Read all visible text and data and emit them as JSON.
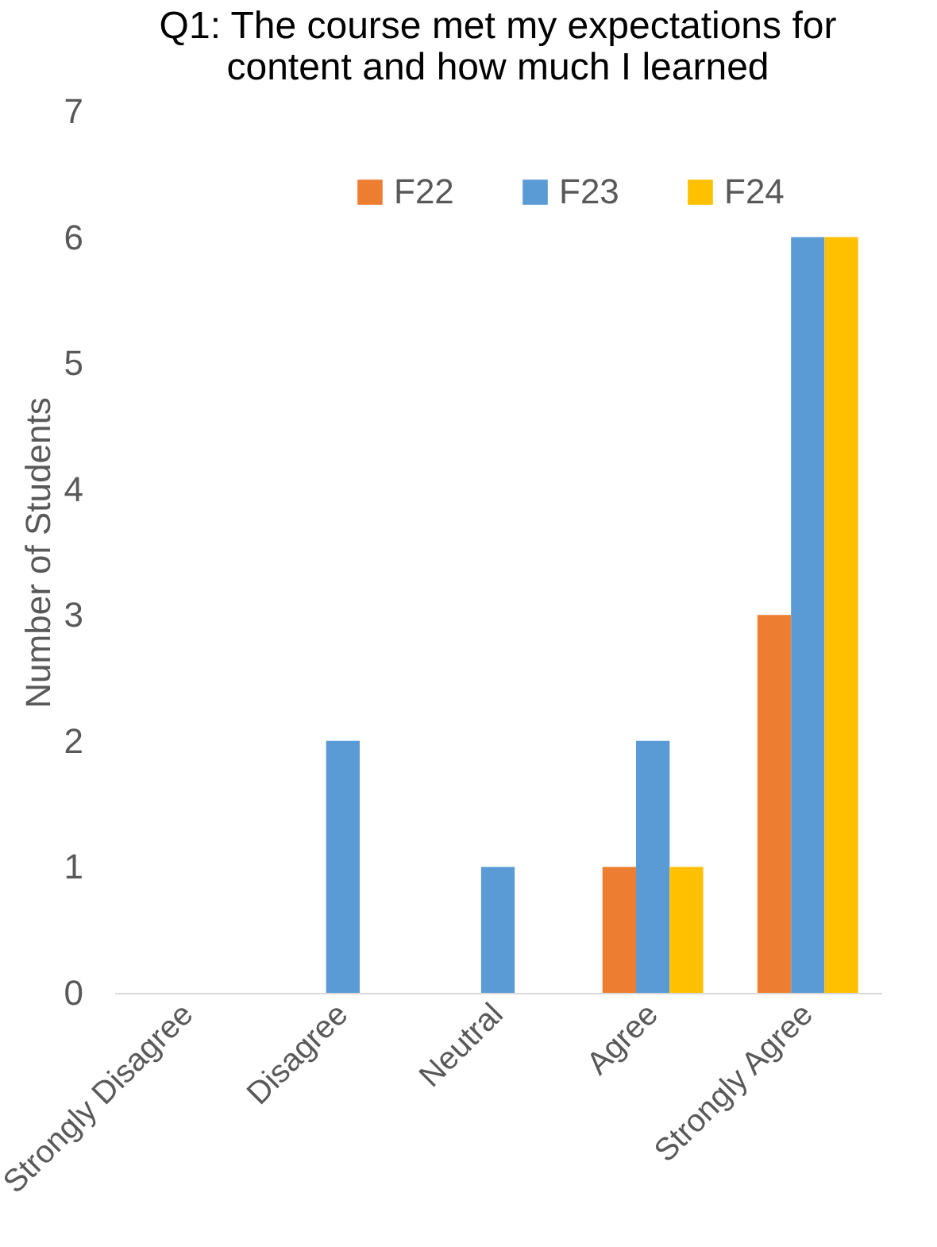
{
  "chart_data": {
    "type": "bar",
    "title": "Q1:  The course met my expectations for content and how much I learned",
    "ylabel": "Number of Students",
    "categories": [
      "Strongly Disagree",
      "Disagree",
      "Neutral",
      "Agree",
      "Strongly Agree"
    ],
    "series": [
      {
        "name": "F22",
        "color": "#ed7d31",
        "values": [
          0,
          0,
          0,
          1,
          3
        ]
      },
      {
        "name": "F23",
        "color": "#5b9bd5",
        "values": [
          0,
          2,
          1,
          2,
          6
        ]
      },
      {
        "name": "F24",
        "color": "#ffc000",
        "values": [
          0,
          0,
          0,
          1,
          6
        ]
      }
    ],
    "ylim": [
      0,
      7
    ],
    "yticks": [
      0,
      1,
      2,
      3,
      4,
      5,
      6,
      7
    ],
    "grid": false,
    "legend": "top"
  }
}
